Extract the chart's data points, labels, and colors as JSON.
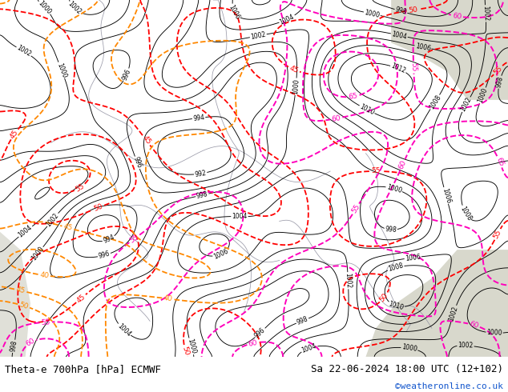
{
  "title_left": "Theta-e 700hPa [hPa] ECMWF",
  "title_right": "Sa 22-06-2024 18:00 UTC (12+102)",
  "credit": "©weatheronline.co.uk",
  "bg_land": "#c8e8a0",
  "bg_sea": "#d8d8cc",
  "bg_sea2": "#e0e0d8",
  "fig_width": 6.34,
  "fig_height": 4.9,
  "dpi": 100,
  "title_fontsize": 9.0,
  "credit_fontsize": 8.0,
  "credit_color": "#1155cc"
}
